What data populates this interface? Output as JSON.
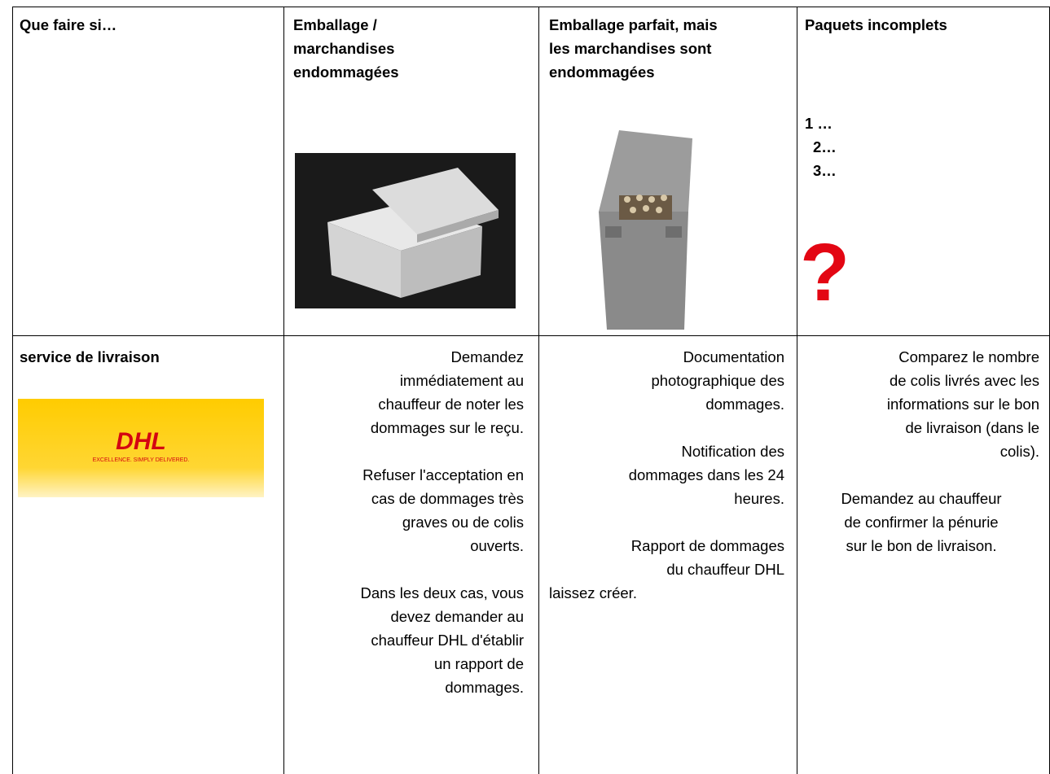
{
  "header": {
    "corner": "Que faire si…",
    "columns": [
      {
        "title_lines": [
          "Emballage /",
          "marchandises",
          "endommagées"
        ]
      },
      {
        "title_lines": [
          "Emballage parfait, mais",
          "les marchandises sont",
          "endommagées"
        ]
      },
      {
        "title_lines": [
          "Paquets incomplets"
        ],
        "steps": [
          "1 …",
          "2…",
          "3…"
        ],
        "mark": "?"
      }
    ]
  },
  "row": {
    "label": "service de livraison",
    "logo": {
      "brand": "DHL",
      "tagline": "EXCELLENCE. SIMPLY DELIVERED."
    },
    "cells": [
      {
        "paragraphs": [
          [
            "Demandez",
            "immédiatement au",
            "chauffeur de noter les",
            "dommages sur le reçu."
          ],
          [
            "Refuser l'acceptation en",
            "cas de dommages très",
            "graves ou de colis",
            "ouverts."
          ],
          [
            "Dans les deux cas, vous",
            "devez demander au",
            "chauffeur DHL d'établir",
            "un rapport de",
            "dommages."
          ]
        ]
      },
      {
        "paragraphs": [
          [
            "Documentation",
            "photographique des",
            "dommages."
          ],
          [
            "Notification des",
            "dommages dans les 24",
            "heures."
          ],
          [
            "Rapport de dommages",
            "du chauffeur DHL",
            "laissez créer."
          ]
        ]
      },
      {
        "paragraphs": [
          [
            "Comparez le nombre",
            "de colis livrés avec les",
            "informations sur le bon",
            "de livraison (dans le",
            "colis)."
          ],
          [
            "Demandez au chauffeur",
            "de confirmer la pénurie",
            "sur le bon de livraison."
          ]
        ]
      }
    ]
  }
}
